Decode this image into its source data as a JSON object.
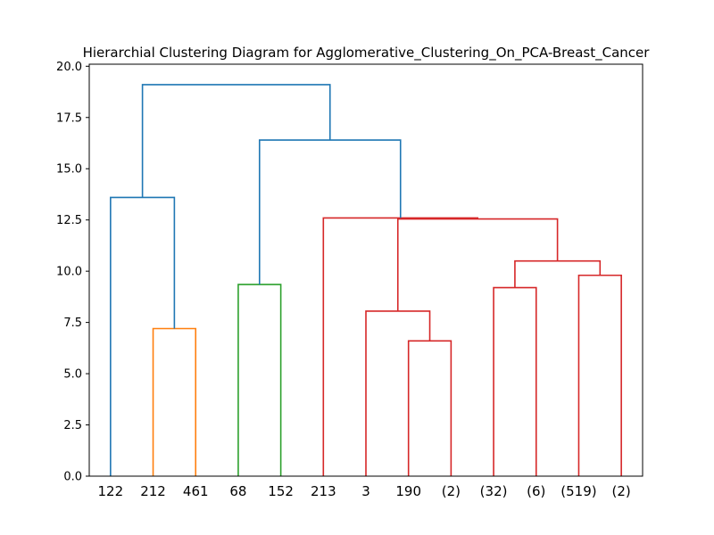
{
  "chart_data": {
    "type": "dendrogram",
    "title": "Hierarchial Clustering Diagram for Agglomerative_Clustering_On_PCA-Breast_Cancer",
    "xlabel": "",
    "ylabel": "",
    "ylim": [
      0,
      20.1
    ],
    "yticks": [
      "0.0",
      "2.5",
      "5.0",
      "7.5",
      "10.0",
      "12.5",
      "15.0",
      "17.5",
      "20.0"
    ],
    "ytick_values": [
      0,
      2.5,
      5,
      7.5,
      10,
      12.5,
      15,
      17.5,
      20
    ],
    "leaves": [
      "122",
      "212",
      "461",
      "68",
      "152",
      "213",
      "3",
      "190",
      "(2)",
      "(32)",
      "(6)",
      "(519)",
      "(2)"
    ],
    "colors": {
      "above_threshold": "#1f77b4",
      "cluster_orange": "#ff7f0e",
      "cluster_green": "#2ca02c",
      "cluster_red": "#d62728"
    },
    "links": [
      {
        "left": 1,
        "right": 2,
        "height": 7.2,
        "color": "#ff7f0e"
      },
      {
        "left": 3,
        "right": 4,
        "height": 9.35,
        "color": "#2ca02c"
      },
      {
        "left": 7,
        "right": 8,
        "height": 6.6,
        "color": "#d62728"
      },
      {
        "left": 6,
        "right": "c",
        "height": 8.05,
        "color": "#d62728"
      },
      {
        "left": 9,
        "right": 10,
        "height": 9.2,
        "color": "#d62728"
      },
      {
        "left": 11,
        "right": 12,
        "height": 9.8,
        "color": "#d62728"
      },
      {
        "left": "e",
        "right": "f",
        "height": 10.5,
        "color": "#d62728"
      },
      {
        "left": "d",
        "right": "g",
        "height": 12.55,
        "color": "#d62728"
      },
      {
        "left": 5,
        "right": "h",
        "height": 12.6,
        "color": "#d62728"
      },
      {
        "left": 0,
        "right": "a",
        "height": 13.6,
        "color": "#1f77b4"
      },
      {
        "left": "b",
        "right": "i",
        "height": 16.4,
        "color": "#1f77b4"
      },
      {
        "left": "j",
        "right": "k",
        "height": 19.1,
        "color": "#1f77b4"
      }
    ]
  }
}
